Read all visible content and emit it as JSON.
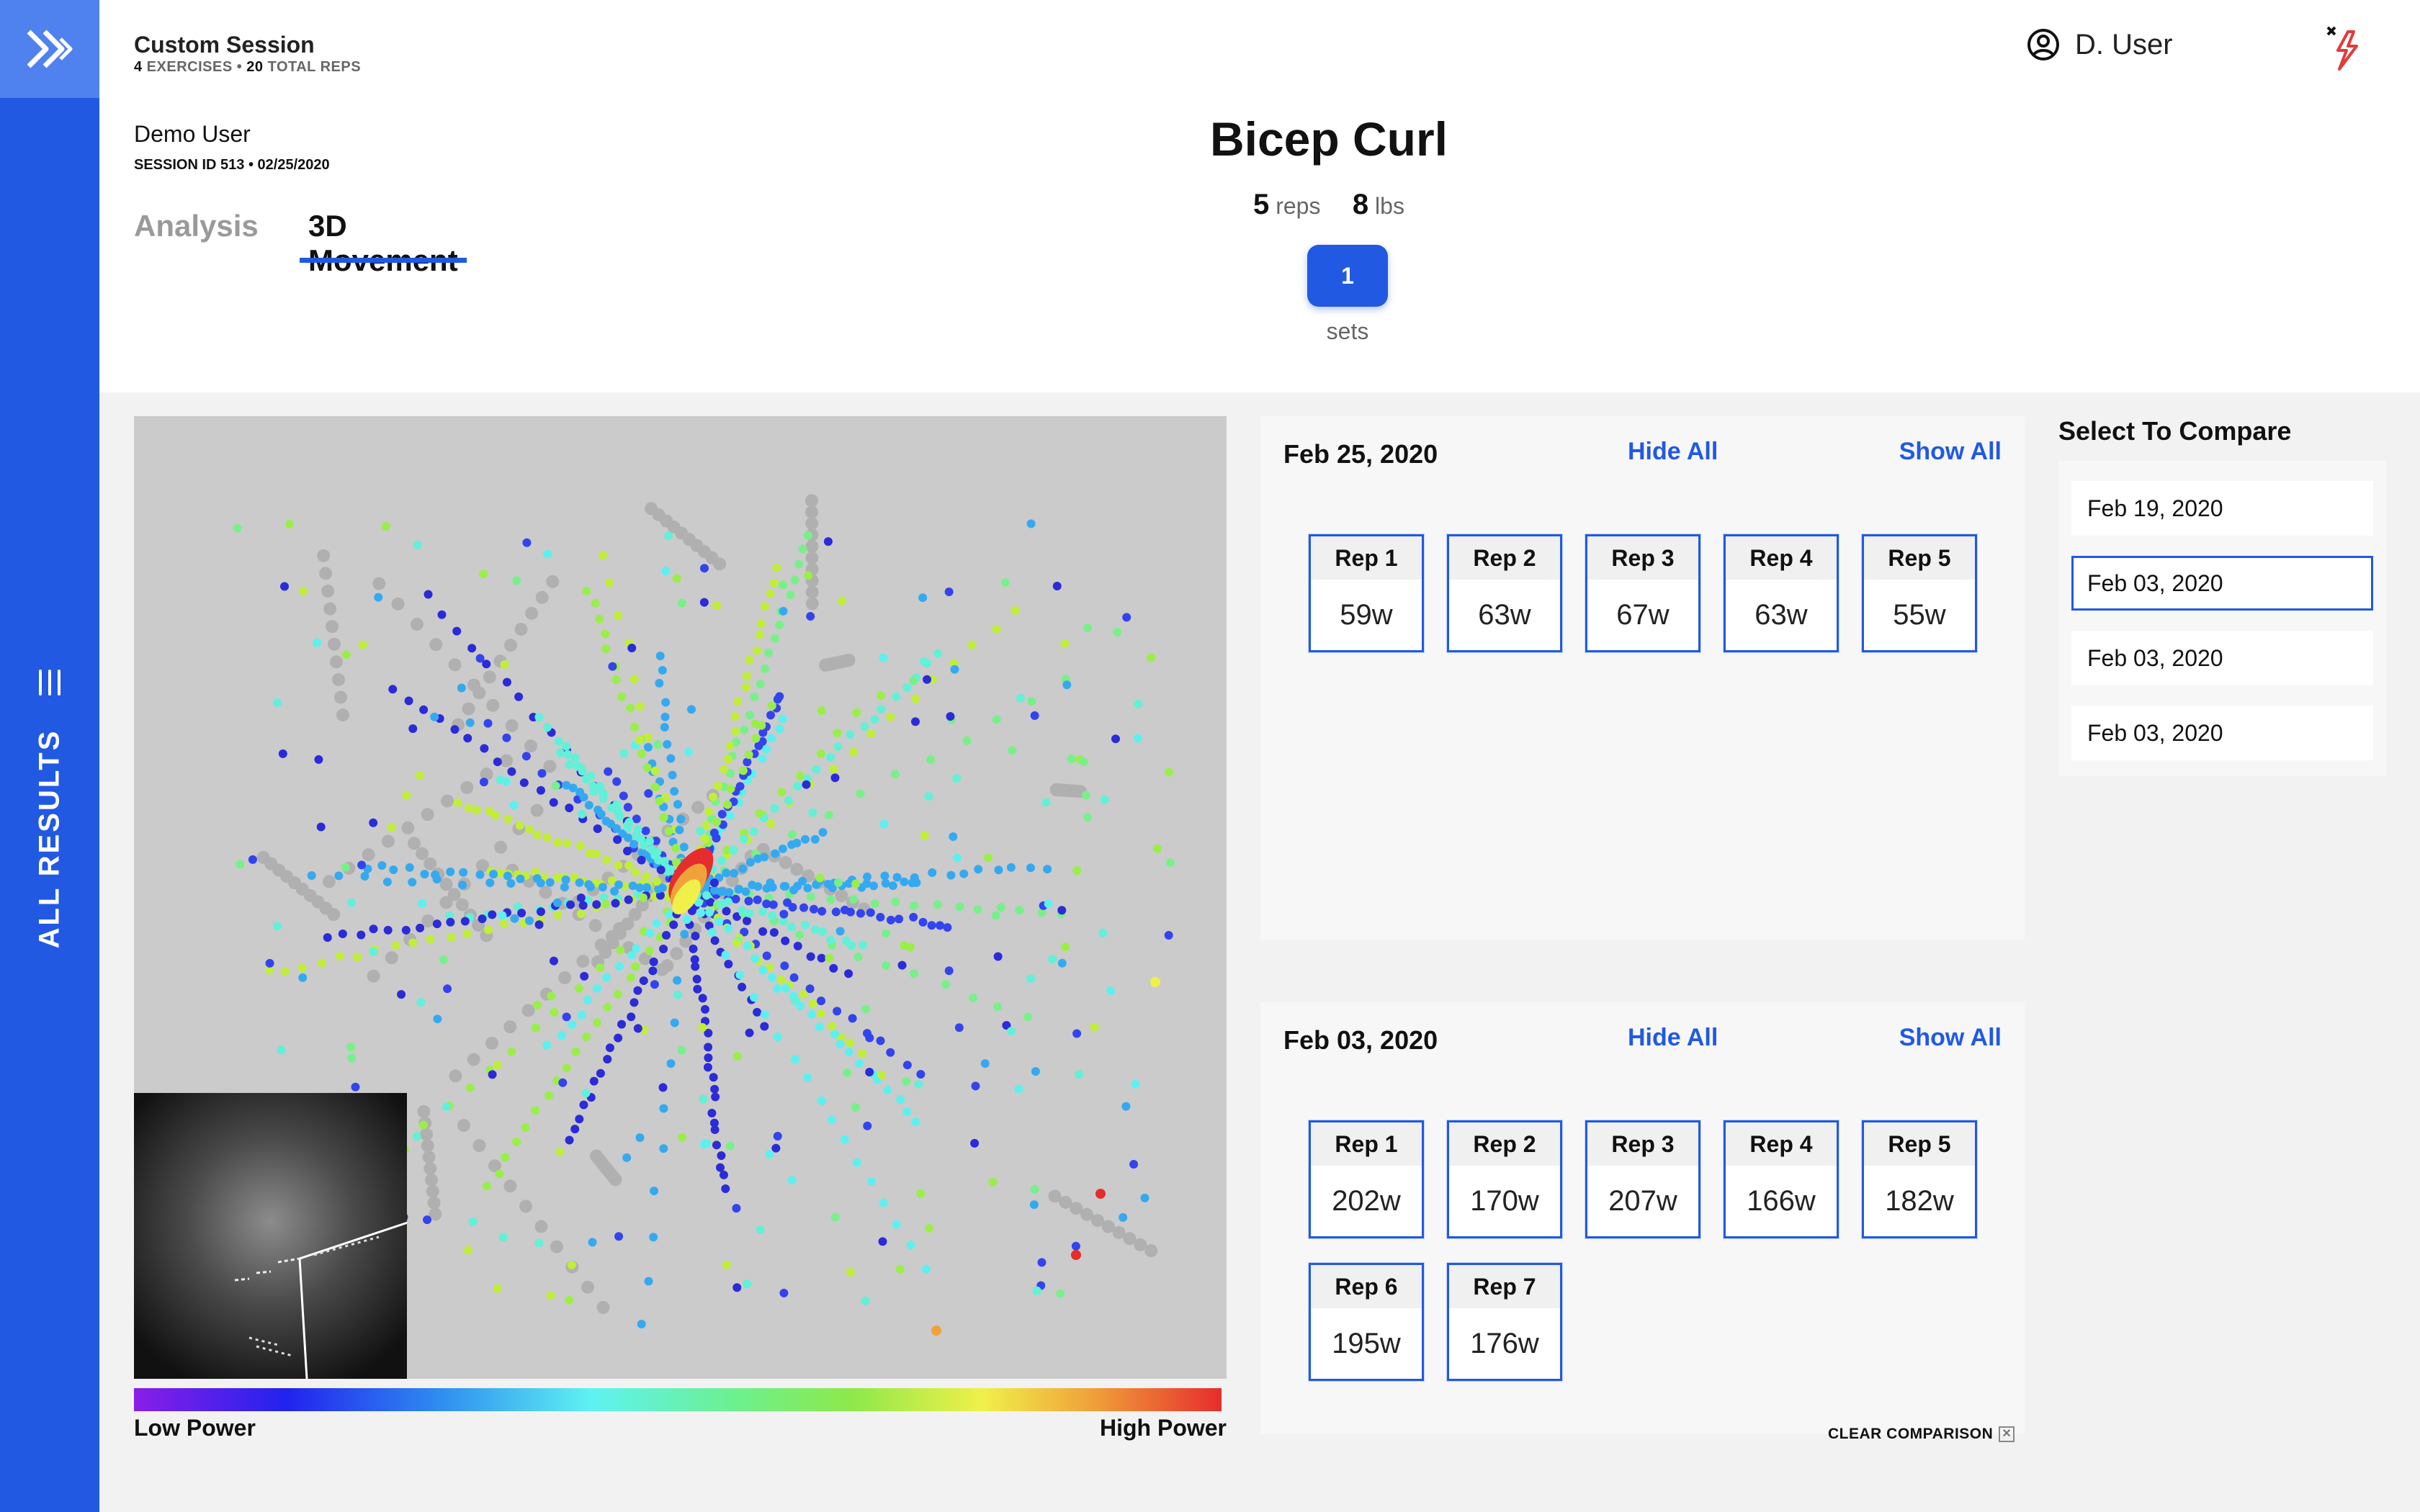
{
  "session": {
    "title": "Custom Session",
    "exercises_count": "4",
    "exercises_text": " EXERCISES • ",
    "reps_count": "20",
    "reps_text": " TOTAL REPS",
    "user": "Demo User",
    "session_id": "SESSION ID 513 • 02/25/2020"
  },
  "tabs": [
    "Analysis",
    "3D Movement"
  ],
  "header": {
    "user_name": "D. User"
  },
  "exercise": {
    "title": "Bicep Curl",
    "reps_value": "5",
    "reps_unit": "reps",
    "weight_value": "8",
    "weight_unit": "lbs",
    "set_number": "1",
    "sets_label": "sets"
  },
  "sidebar": {
    "results_label": "ALL RESULTS"
  },
  "legend": {
    "low": "Low Power",
    "high": "High Power"
  },
  "panels": [
    {
      "date": "Feb 25, 2020",
      "hide_all": "Hide All",
      "show_all": "Show All",
      "reps": [
        {
          "label": "Rep 1",
          "value": "59w"
        },
        {
          "label": "Rep 2",
          "value": "63w"
        },
        {
          "label": "Rep 3",
          "value": "67w"
        },
        {
          "label": "Rep 4",
          "value": "63w"
        },
        {
          "label": "Rep 5",
          "value": "55w"
        }
      ]
    },
    {
      "date": "Feb 03, 2020",
      "hide_all": "Hide All",
      "show_all": "Show All",
      "reps": [
        {
          "label": "Rep 1",
          "value": "202w"
        },
        {
          "label": "Rep 2",
          "value": "170w"
        },
        {
          "label": "Rep 3",
          "value": "207w"
        },
        {
          "label": "Rep 4",
          "value": "166w"
        },
        {
          "label": "Rep 5",
          "value": "182w"
        },
        {
          "label": "Rep 6",
          "value": "195w"
        },
        {
          "label": "Rep 7",
          "value": "176w"
        }
      ]
    }
  ],
  "compare": {
    "title": "Select To Compare",
    "items": [
      "Feb 19, 2020",
      "Feb 03, 2020",
      "Feb 03, 2020",
      "Feb 03, 2020"
    ],
    "selected_index": 1,
    "clear_label": "CLEAR COMPARISON"
  },
  "colors": {
    "accent": "#2159e3",
    "sidebar_logo": "#4f82ee",
    "low_power": "#8a1ee8",
    "high_power": "#e62c2c"
  }
}
